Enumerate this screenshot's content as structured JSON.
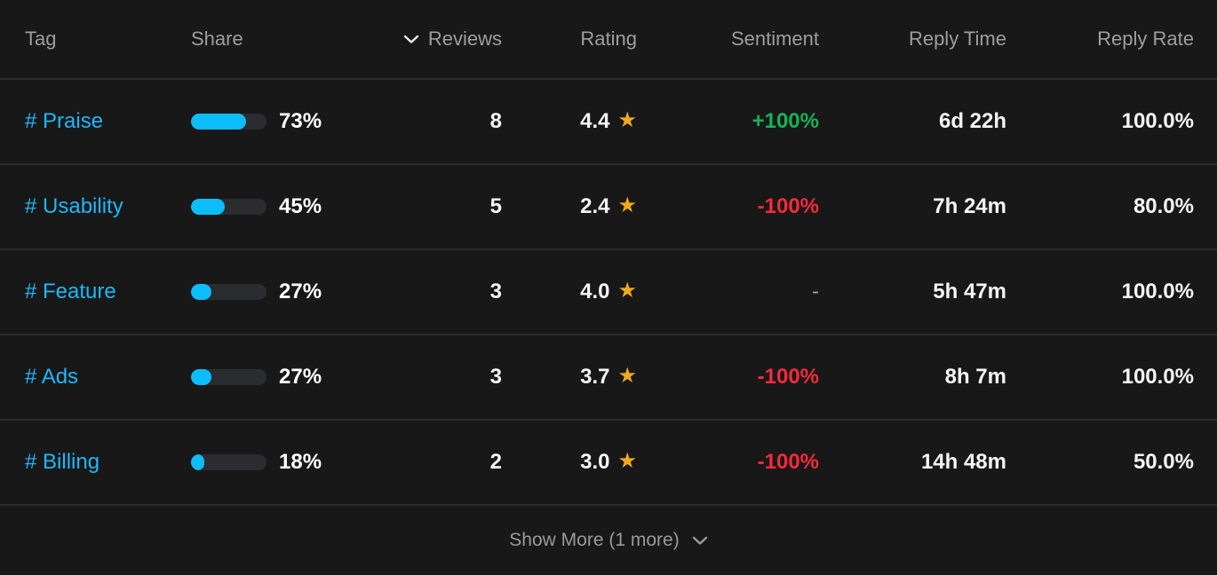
{
  "table": {
    "columns": [
      {
        "key": "tag",
        "label": "Tag"
      },
      {
        "key": "share",
        "label": "Share"
      },
      {
        "key": "reviews",
        "label": "Reviews",
        "sorted": "desc"
      },
      {
        "key": "rating",
        "label": "Rating"
      },
      {
        "key": "sentiment",
        "label": "Sentiment"
      },
      {
        "key": "reply_time",
        "label": "Reply Time"
      },
      {
        "key": "reply_rate",
        "label": "Reply Rate"
      }
    ],
    "rows": [
      {
        "tag": "# Praise",
        "share_pct": 73,
        "share_label": "73%",
        "reviews": "8",
        "rating": "4.4",
        "sentiment": "+100%",
        "sentiment_kind": "positive",
        "reply_time": "6d 22h",
        "reply_rate": "100.0%"
      },
      {
        "tag": "# Usability",
        "share_pct": 45,
        "share_label": "45%",
        "reviews": "5",
        "rating": "2.4",
        "sentiment": "-100%",
        "sentiment_kind": "negative",
        "reply_time": "7h 24m",
        "reply_rate": "80.0%"
      },
      {
        "tag": "# Feature",
        "share_pct": 27,
        "share_label": "27%",
        "reviews": "3",
        "rating": "4.0",
        "sentiment": "-",
        "sentiment_kind": "neutral",
        "reply_time": "5h 47m",
        "reply_rate": "100.0%"
      },
      {
        "tag": "# Ads",
        "share_pct": 27,
        "share_label": "27%",
        "reviews": "3",
        "rating": "3.7",
        "sentiment": "-100%",
        "sentiment_kind": "negative",
        "reply_time": "8h 7m",
        "reply_rate": "100.0%"
      },
      {
        "tag": "# Billing",
        "share_pct": 18,
        "share_label": "18%",
        "reviews": "2",
        "rating": "3.0",
        "sentiment": "-100%",
        "sentiment_kind": "negative",
        "reply_time": "14h 48m",
        "reply_rate": "50.0%"
      }
    ]
  },
  "icons": {
    "star": "★",
    "sort_indicator": "chevron-down",
    "show_more_chevron": "chevron-down"
  },
  "footer": {
    "show_more_label": "Show More (1 more)"
  },
  "colors": {
    "background": "#181818",
    "divider": "#2b2b2b",
    "header_text": "#9e9e9e",
    "value_text": "#f5f5f5",
    "tag_link": "#1fb6f9",
    "bar_fill": "#0cbdf9",
    "bar_track": "#2a2c2f",
    "star": "#f0a81d",
    "sentiment_positive": "#16b257",
    "sentiment_negative": "#f5293d"
  }
}
